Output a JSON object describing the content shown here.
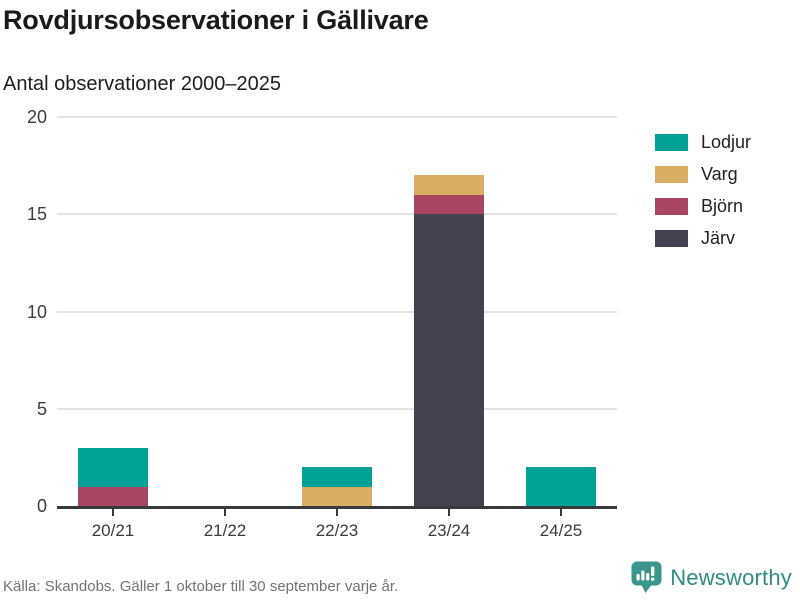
{
  "header": {
    "title": "Rovdjursobservationer i Gällivare",
    "subtitle": "Antal observationer 2000–2025"
  },
  "chart_data": {
    "type": "bar",
    "stacked": true,
    "title": "Rovdjursobservationer i Gällivare",
    "subtitle": "Antal observationer 2000–2025",
    "categories": [
      "20/21",
      "21/22",
      "22/23",
      "23/24",
      "24/25"
    ],
    "series": [
      {
        "name": "Lodjur",
        "color": "#00a296",
        "values": [
          2,
          0,
          1,
          0,
          2
        ]
      },
      {
        "name": "Varg",
        "color": "#d9ae62",
        "values": [
          0,
          0,
          1,
          1,
          0
        ]
      },
      {
        "name": "Björn",
        "color": "#a84563",
        "values": [
          1,
          0,
          0,
          1,
          0
        ]
      },
      {
        "name": "Järv",
        "color": "#454150",
        "values": [
          0,
          0,
          0,
          15,
          0
        ]
      }
    ],
    "stack_order_bottom_to_top": [
      "Järv",
      "Björn",
      "Varg",
      "Lodjur"
    ],
    "totals_per_category": [
      3,
      0,
      2,
      17,
      2
    ],
    "ylim": [
      0,
      20
    ],
    "yticks": [
      0,
      5,
      10,
      15,
      20
    ],
    "xlabel": "",
    "ylabel": "",
    "grid": true,
    "legend_position": "right"
  },
  "footer": {
    "source": "Källa: Skandobs. Gäller 1 oktober till 30 september varje år.",
    "brand": "Newsworthy"
  },
  "colors": {
    "lodjur_teal": "#00a296",
    "varg_gold": "#d9ae62",
    "bjorn_maroon": "#a84563",
    "jarv_dark": "#454150",
    "brand_teal": "#2f8d84",
    "brand_icon_teal": "#3a968c",
    "axis": "#3a3a3a",
    "gridline": "#e3e3e3",
    "muted_text": "#737373"
  }
}
